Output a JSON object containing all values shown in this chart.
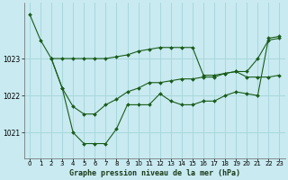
{
  "title": "Graphe pression niveau de la mer (hPa)",
  "background_color": "#c8eaf0",
  "grid_color": "#a8d8dc",
  "line_color": "#1a5c1a",
  "marker_color": "#1a5c1a",
  "x_ticks": [
    0,
    1,
    2,
    3,
    4,
    5,
    6,
    7,
    8,
    9,
    10,
    11,
    12,
    13,
    14,
    15,
    16,
    17,
    18,
    19,
    20,
    21,
    22,
    23
  ],
  "y_ticks": [
    1021,
    1022,
    1023
  ],
  "ylim": [
    1020.3,
    1024.5
  ],
  "xlim": [
    -0.5,
    23.5
  ],
  "series1": {
    "x": [
      0,
      1,
      2,
      3,
      4,
      5,
      6,
      7,
      8,
      9,
      10,
      11,
      12,
      13,
      14,
      15,
      16,
      17,
      18,
      19,
      20,
      21,
      22,
      23
    ],
    "y": [
      1024.2,
      1023.5,
      1023.0,
      1022.2,
      1021.0,
      1020.7,
      1020.7,
      1020.7,
      1021.1,
      1021.75,
      1021.75,
      1021.75,
      1022.05,
      1021.85,
      1021.75,
      1021.75,
      1021.85,
      1021.85,
      1022.0,
      1022.1,
      1022.05,
      1022.0,
      1023.55,
      1023.6
    ]
  },
  "series2": {
    "x": [
      2,
      3,
      4,
      5,
      6,
      7,
      8,
      9,
      10,
      11,
      12,
      13,
      14,
      15,
      16,
      17,
      18,
      19,
      20,
      21,
      22,
      23
    ],
    "y": [
      1023.0,
      1023.0,
      1023.0,
      1023.0,
      1023.0,
      1023.0,
      1023.05,
      1023.1,
      1023.2,
      1023.25,
      1023.3,
      1023.3,
      1023.3,
      1023.3,
      1022.55,
      1022.55,
      1022.6,
      1022.65,
      1022.65,
      1023.0,
      1023.5,
      1023.55
    ]
  },
  "series3": {
    "x": [
      2,
      3,
      4,
      5,
      6,
      7,
      8,
      9,
      10,
      11,
      12,
      13,
      14,
      15,
      16,
      17,
      18,
      19,
      20,
      21,
      22,
      23
    ],
    "y": [
      1023.0,
      1022.2,
      1021.7,
      1021.5,
      1021.5,
      1021.75,
      1021.9,
      1022.1,
      1022.2,
      1022.35,
      1022.35,
      1022.4,
      1022.45,
      1022.45,
      1022.5,
      1022.5,
      1022.6,
      1022.65,
      1022.5,
      1022.5,
      1022.5,
      1022.55
    ]
  }
}
